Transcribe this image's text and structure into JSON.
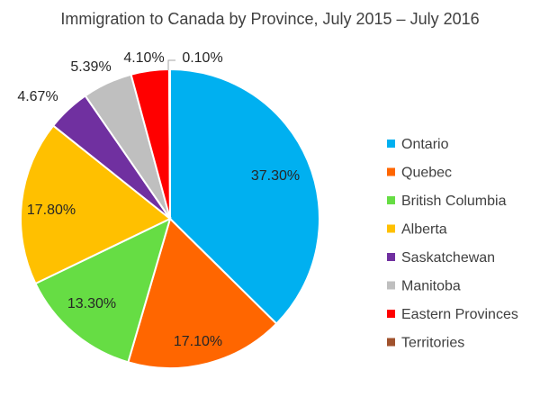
{
  "chart_data": {
    "type": "pie",
    "title": "Immigration to Canada by Province, July 2015 – July 2016",
    "legend_position": "right",
    "slices": [
      {
        "name": "Ontario",
        "value": 37.3,
        "label": "37.30%",
        "color": "#00B0F0"
      },
      {
        "name": "Quebec",
        "value": 17.1,
        "label": "17.10%",
        "color": "#FF6600"
      },
      {
        "name": "British Columbia",
        "value": 13.3,
        "label": "13.30%",
        "color": "#66DD44"
      },
      {
        "name": "Alberta",
        "value": 17.8,
        "label": "17.80%",
        "color": "#FFC000"
      },
      {
        "name": "Saskatchewan",
        "value": 4.67,
        "label": "4.67%",
        "color": "#7030A0"
      },
      {
        "name": "Manitoba",
        "value": 5.39,
        "label": "5.39%",
        "color": "#BFBFBF"
      },
      {
        "name": "Eastern Provinces",
        "value": 4.1,
        "label": "4.10%",
        "color": "#FF0000"
      },
      {
        "name": "Territories",
        "value": 0.1,
        "label": "0.10%",
        "color": "#A0522D"
      }
    ]
  }
}
